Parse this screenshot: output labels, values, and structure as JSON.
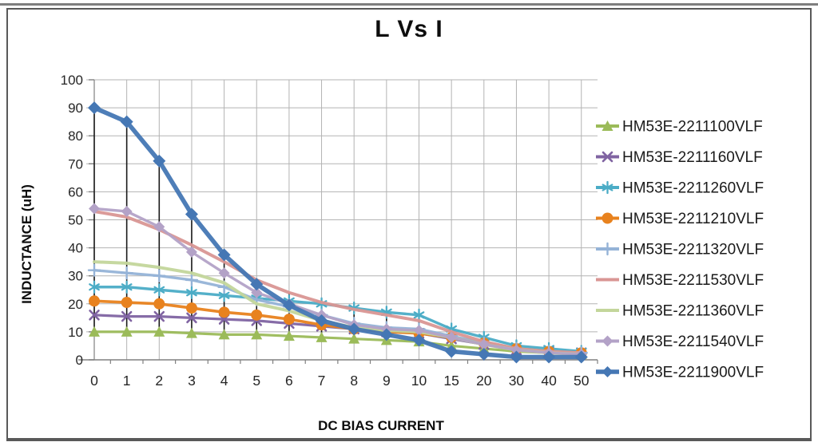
{
  "chart_data": {
    "type": "line",
    "title": "L Vs I",
    "xlabel": "DC BIAS CURRENT",
    "ylabel": "INDUCTANCE (uH)",
    "categories": [
      "0",
      "1",
      "2",
      "3",
      "4",
      "5",
      "6",
      "7",
      "8",
      "9",
      "10",
      "15",
      "20",
      "30",
      "40",
      "50"
    ],
    "ylim": [
      0,
      100
    ],
    "ytick_step": 10,
    "grid": true,
    "high_low_lines": true,
    "legend_position": "right",
    "axis_color": "#808080",
    "grid_color": "#b3b3b3",
    "highlow_color": "#1a1a1a",
    "tick_label_color": "#262626",
    "legend_text_color": "#1a1a1a",
    "series": [
      {
        "name": "HM53E-2211100VLF",
        "color": "#9BBB59",
        "marker": "triangle",
        "line_width": 3.2,
        "values": [
          10,
          10,
          10,
          9.5,
          9,
          9,
          8.5,
          8,
          7.5,
          7,
          6.5,
          5,
          4,
          3,
          2.5,
          2
        ]
      },
      {
        "name": "HM53E-2211160VLF",
        "color": "#8064A2",
        "marker": "x",
        "line_width": 3.2,
        "values": [
          16,
          15.5,
          15.5,
          15,
          14.5,
          14,
          13,
          12,
          11,
          10,
          9.5,
          7.5,
          5.5,
          3.5,
          3,
          2.5
        ]
      },
      {
        "name": "HM53E-2211260VLF",
        "color": "#4BACC6",
        "marker": "asterisk",
        "line_width": 3.4,
        "values": [
          26,
          26,
          25,
          24,
          23,
          22,
          21,
          20,
          18.5,
          17,
          16,
          11,
          8,
          5,
          4,
          3
        ]
      },
      {
        "name": "HM53E-2211210VLF",
        "color": "#E8821E",
        "marker": "circle",
        "line_width": 3.6,
        "values": [
          21,
          20.5,
          20,
          18.5,
          17,
          16,
          14.5,
          12.5,
          11,
          10,
          9.5,
          8,
          6,
          4,
          3,
          2.5
        ]
      },
      {
        "name": "HM53E-2211320VLF",
        "color": "#95B3D7",
        "marker": "plus",
        "line_width": 3.4,
        "values": [
          32,
          31,
          30,
          28.5,
          26,
          21.5,
          19,
          16,
          13,
          11.5,
          11,
          8.5,
          6,
          4,
          3,
          2.5
        ]
      },
      {
        "name": "HM53E-2211530VLF",
        "color": "#D99694",
        "marker": "none",
        "line_width": 4.0,
        "values": [
          53,
          51,
          46.5,
          41,
          35,
          28.5,
          24,
          20.5,
          18,
          16,
          14,
          10,
          6.5,
          4,
          3,
          2.5
        ]
      },
      {
        "name": "HM53E-2211360VLF",
        "color": "#C3D69B",
        "marker": "none",
        "line_width": 4.0,
        "values": [
          35,
          34.5,
          33,
          31,
          27.5,
          20,
          17.5,
          14,
          11.5,
          10.5,
          10,
          8,
          5.5,
          3.5,
          2.5,
          2
        ]
      },
      {
        "name": "HM53E-2211540VLF",
        "color": "#B3A2C7",
        "marker": "diamond",
        "line_width": 3.4,
        "values": [
          54,
          53,
          47.5,
          38.5,
          31,
          24,
          20,
          16,
          12.5,
          11,
          10.5,
          8,
          5.5,
          3.5,
          2.5,
          2
        ]
      },
      {
        "name": "HM53E-2211900VLF",
        "color": "#4577B4",
        "marker": "diamond",
        "line_width": 5.6,
        "values": [
          90,
          85,
          71,
          52,
          37.5,
          27,
          19.5,
          14,
          11,
          9,
          7,
          3,
          2,
          1,
          1,
          1
        ]
      }
    ]
  }
}
